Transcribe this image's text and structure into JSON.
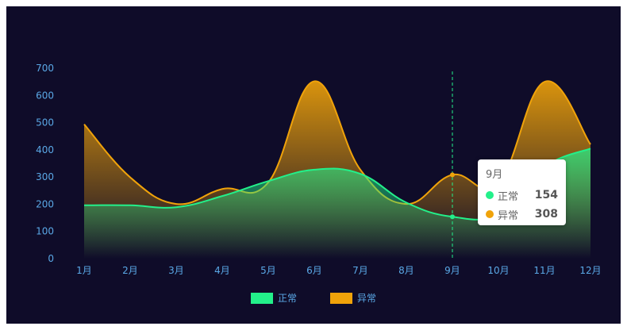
{
  "chart_data": {
    "type": "area",
    "categories": [
      "1月",
      "2月",
      "3月",
      "4月",
      "5月",
      "6月",
      "7月",
      "8月",
      "9月",
      "10月",
      "11月",
      "12月"
    ],
    "yticks": [
      0,
      100,
      200,
      300,
      400,
      500,
      600,
      700
    ],
    "ylim": [
      0,
      700
    ],
    "grid": false,
    "legend_position": "bottom-center",
    "series": [
      {
        "name": "正常",
        "color": "#23f08a",
        "values": [
          196,
          196,
          189,
          230,
          285,
          327,
          312,
          206,
          154,
          166,
          337,
          405
        ]
      },
      {
        "name": "异常",
        "color": "#f0a30a",
        "values": [
          494,
          299,
          201,
          256,
          280,
          652,
          327,
          201,
          308,
          277,
          650,
          420
        ]
      }
    ],
    "tooltip": {
      "category": "9月",
      "rows": [
        {
          "name": "正常",
          "value": "154",
          "color": "#23f08a"
        },
        {
          "name": "异常",
          "value": "308",
          "color": "#f0a30a"
        }
      ]
    }
  }
}
